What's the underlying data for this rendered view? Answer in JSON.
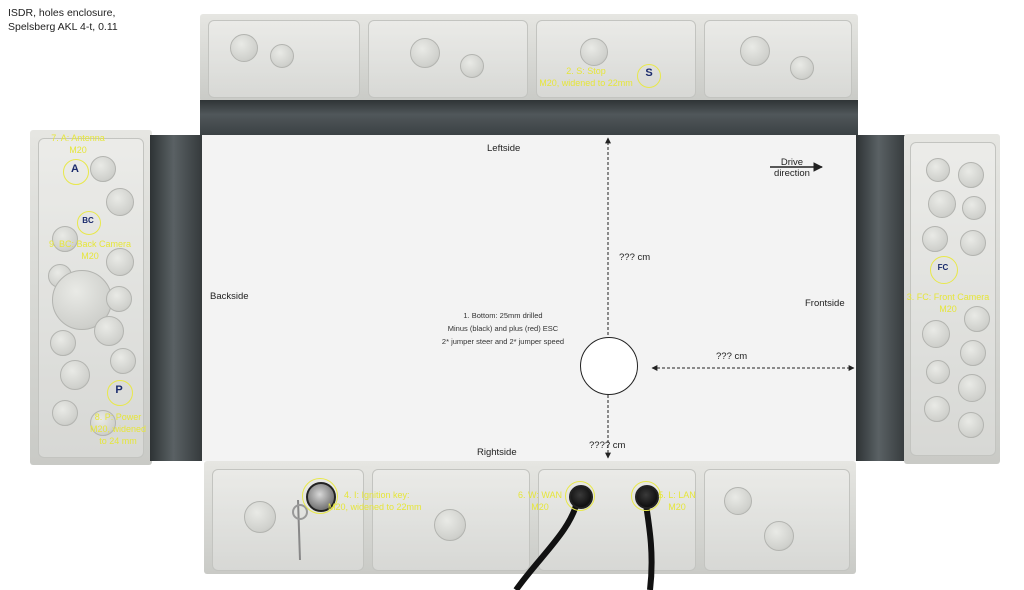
{
  "title_lines": [
    "ISDR, holes enclosure,",
    "Spelsberg AKL 4-t,  0.11"
  ],
  "sides": {
    "left": "Leftside",
    "right": "Rightside",
    "back": "Backside",
    "front": "Frontside"
  },
  "drive_direction": [
    "Drive",
    "direction"
  ],
  "dimensions": {
    "vertical_top": "??? cm",
    "vertical_bottom": "???? cm",
    "horizontal": "??? cm"
  },
  "bottom_hole": {
    "lines": [
      "1. Bottom: 25mm drilled",
      "Minus (black)  and plus (red) ESC",
      "2* jumper steer and 2* jumper speed"
    ]
  },
  "holes": {
    "stop": [
      "2. S: Stop",
      "M20, widened to 22mm"
    ],
    "antenna": [
      "7. A: Antenna",
      "M20"
    ],
    "back_camera": [
      "9. BC: Back Camera",
      "M20"
    ],
    "power": [
      "8. P: Power",
      "M20, widened",
      "to 24 mm"
    ],
    "front_camera": [
      "3. FC: Front Camera",
      "M20"
    ],
    "ignition": [
      "4. I: Ignition key:",
      "M20, widened to 22mm"
    ],
    "wan": [
      "6. W: WAN",
      "M20"
    ],
    "lan": [
      "5. L: LAN",
      "M20"
    ]
  },
  "hole_markers": {
    "stop": "S",
    "antenna": "A",
    "back_camera": "BC",
    "power": "P",
    "front_camera": "FC"
  },
  "colors": {
    "annotation": "#e6e63a",
    "marker": "#1a2a6c",
    "panel": "#f3f3f3"
  }
}
